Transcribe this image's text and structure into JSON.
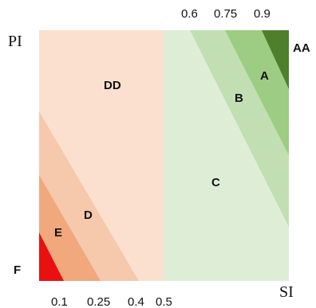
{
  "diagram": {
    "axis_labels": {
      "x": "SI",
      "y": "PI"
    },
    "x_ticks_bottom": [
      "0.1",
      "0.25",
      "0.4",
      "0.5"
    ],
    "x_ticks_top": [
      "0.6",
      "0.75",
      "0.9"
    ],
    "regions": {
      "AA": "AA",
      "A": "A",
      "B": "B",
      "C": "C",
      "DD": "DD",
      "D": "D",
      "E": "E",
      "F": "F"
    },
    "colors": {
      "AA": "#4e7f2c",
      "A": "#9ccd82",
      "B": "#c1dfb2",
      "C": "#deeed6",
      "DD": "#fbe0d0",
      "D": "#f6c8ac",
      "E": "#f0a87c",
      "F": "#e8110f"
    }
  }
}
